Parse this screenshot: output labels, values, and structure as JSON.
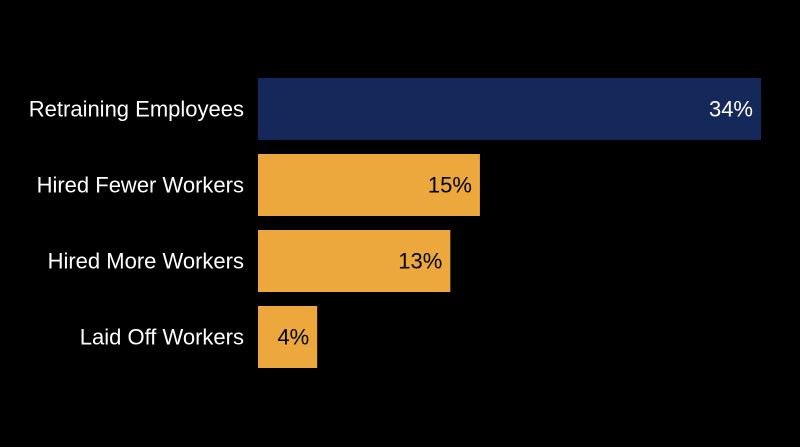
{
  "chart_data": {
    "type": "bar",
    "orientation": "horizontal",
    "categories": [
      "Retraining Employees",
      "Hired Fewer Workers",
      "Hired More Workers",
      "Laid Off Workers"
    ],
    "values": [
      34,
      15,
      13,
      4
    ],
    "value_labels": [
      "34%",
      "15%",
      "13%",
      "4%"
    ],
    "unit": "%",
    "xlim": [
      0,
      34
    ],
    "grid": false,
    "legend": "none",
    "colors": {
      "highlight": "#15285a",
      "default": "#eca83c",
      "background": "#000000",
      "label_on_highlight": "#ffffff",
      "label_on_default": "#000000",
      "category_text": "#ffffff"
    },
    "highlight_index": 0
  }
}
